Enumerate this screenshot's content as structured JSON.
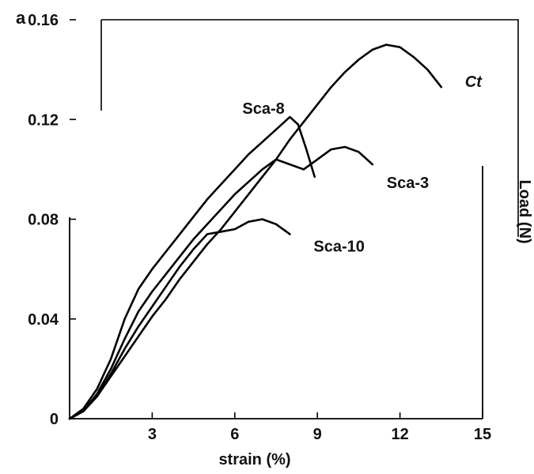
{
  "chart_data": {
    "type": "line",
    "panel_label": "a",
    "xlabel": "strain (%)",
    "ylabel": "Load (N)",
    "xlim": [
      0,
      15
    ],
    "ylim": [
      0,
      0.16
    ],
    "x_ticks": [
      3,
      6,
      9,
      12,
      15
    ],
    "x_tick_labels": [
      "3",
      "6",
      "9",
      "12",
      "15"
    ],
    "y_ticks": [
      0,
      0.04,
      0.08,
      0.12,
      0.16
    ],
    "y_tick_labels": [
      "0",
      "0.04",
      "0.08",
      "0.12",
      "0.16"
    ],
    "grid": false,
    "series": [
      {
        "name": "Ct",
        "x": [
          0,
          0.5,
          1,
          1.5,
          2,
          2.5,
          3,
          3.5,
          4,
          4.5,
          5,
          5.5,
          6,
          6.5,
          7,
          7.5,
          8,
          8.5,
          9,
          9.5,
          10,
          10.5,
          11,
          11.5,
          12,
          12.5,
          13,
          13.5
        ],
        "y": [
          0,
          0.003,
          0.009,
          0.017,
          0.025,
          0.033,
          0.041,
          0.048,
          0.056,
          0.063,
          0.07,
          0.076,
          0.083,
          0.09,
          0.097,
          0.104,
          0.112,
          0.119,
          0.126,
          0.133,
          0.139,
          0.144,
          0.148,
          0.15,
          0.149,
          0.145,
          0.14,
          0.133
        ]
      },
      {
        "name": "Sca-8",
        "x": [
          0,
          0.5,
          1,
          1.5,
          2,
          2.5,
          3,
          3.5,
          4,
          4.5,
          5,
          5.5,
          6,
          6.5,
          7,
          7.5,
          8,
          8.3,
          8.6,
          8.9
        ],
        "y": [
          0,
          0.004,
          0.012,
          0.024,
          0.04,
          0.052,
          0.06,
          0.067,
          0.074,
          0.081,
          0.088,
          0.094,
          0.1,
          0.106,
          0.111,
          0.116,
          0.121,
          0.118,
          0.108,
          0.097
        ]
      },
      {
        "name": "Sca-3",
        "x": [
          0,
          0.5,
          1,
          1.5,
          2,
          2.5,
          3,
          3.5,
          4,
          4.5,
          5,
          5.5,
          6,
          6.5,
          7,
          7.5,
          8,
          8.5,
          9,
          9.5,
          10,
          10.5,
          11
        ],
        "y": [
          0,
          0.003,
          0.01,
          0.02,
          0.032,
          0.043,
          0.051,
          0.058,
          0.065,
          0.072,
          0.078,
          0.084,
          0.09,
          0.095,
          0.1,
          0.104,
          0.102,
          0.1,
          0.104,
          0.108,
          0.109,
          0.107,
          0.102
        ]
      },
      {
        "name": "Sca-10",
        "x": [
          0,
          0.5,
          1,
          1.5,
          2,
          2.5,
          3,
          3.5,
          4,
          4.5,
          5,
          5.5,
          6,
          6.5,
          7,
          7.5,
          8
        ],
        "y": [
          0,
          0.003,
          0.009,
          0.018,
          0.028,
          0.037,
          0.045,
          0.053,
          0.061,
          0.068,
          0.074,
          0.075,
          0.076,
          0.079,
          0.08,
          0.078,
          0.074
        ]
      }
    ],
    "series_labels": [
      "Ct",
      "Sca-8",
      "Sca-3",
      "Sca-10"
    ]
  }
}
